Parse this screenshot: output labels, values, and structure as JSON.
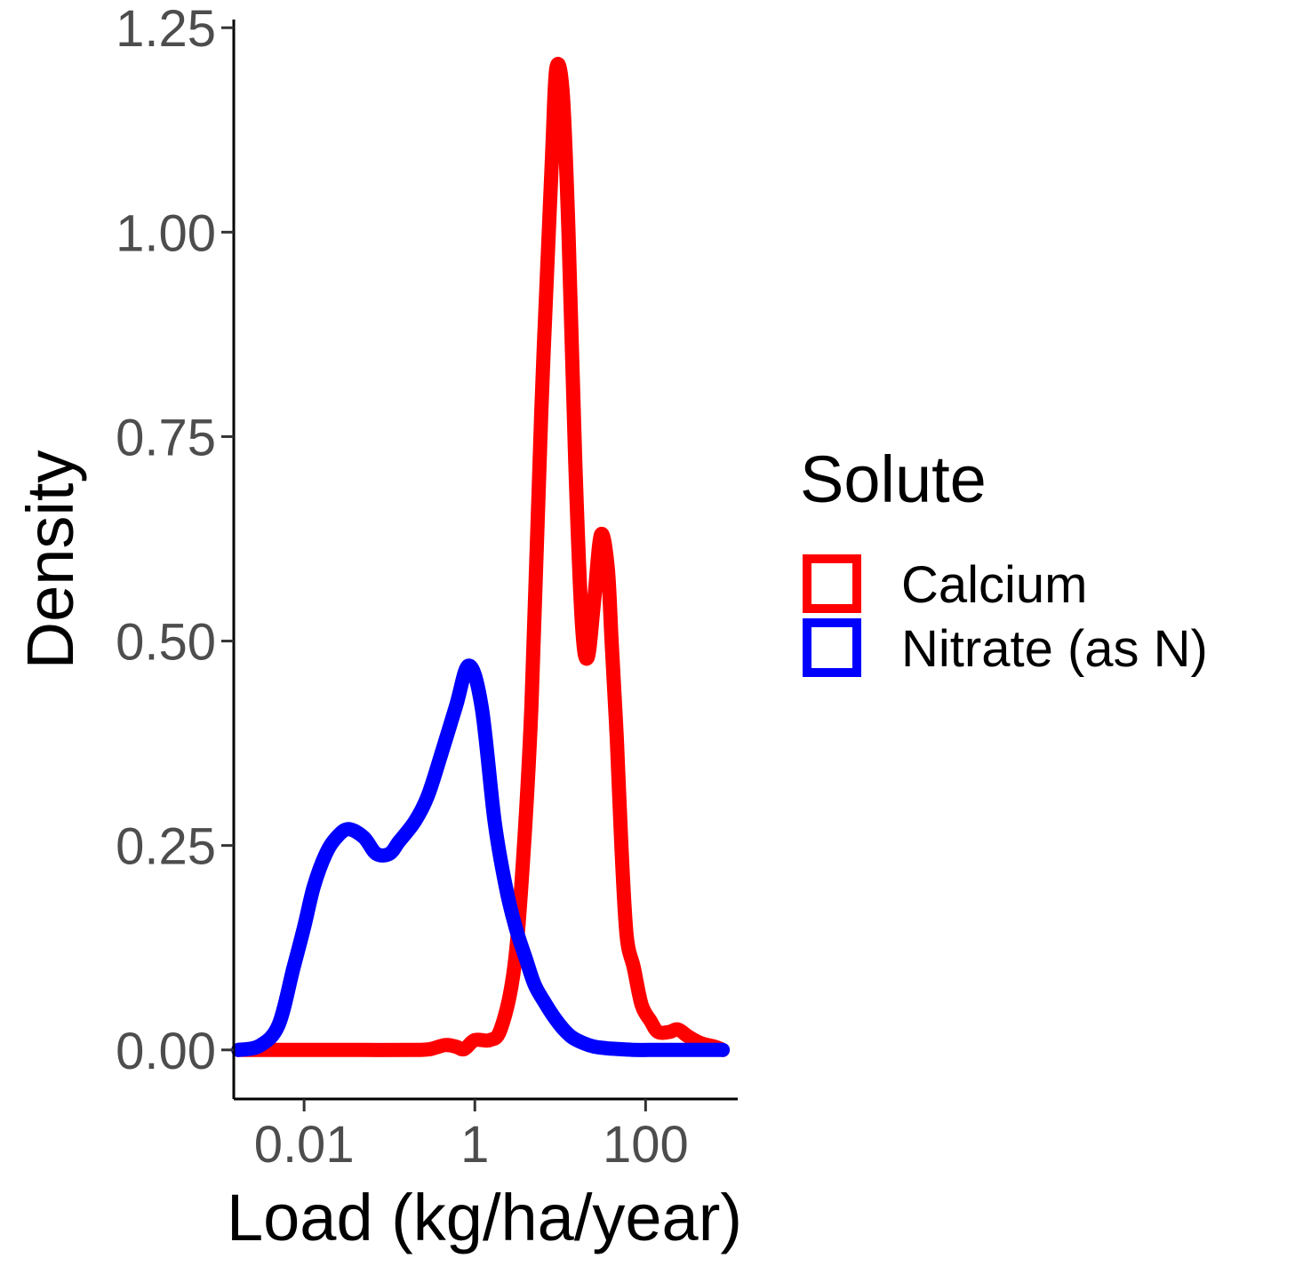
{
  "chart_data": {
    "type": "line",
    "xlabel": "Load (kg/ha/year)",
    "ylabel": "Density",
    "x_scale": "log10",
    "xlim": [
      0.0015,
      1200
    ],
    "ylim": [
      -0.06,
      1.26
    ],
    "x_ticks": [
      {
        "value": 0.01,
        "label": "0.01"
      },
      {
        "value": 1,
        "label": "1"
      },
      {
        "value": 100,
        "label": "100"
      }
    ],
    "y_ticks": [
      {
        "value": 0.0,
        "label": "0.00"
      },
      {
        "value": 0.25,
        "label": "0.25"
      },
      {
        "value": 0.5,
        "label": "0.50"
      },
      {
        "value": 0.75,
        "label": "0.75"
      },
      {
        "value": 1.0,
        "label": "1.00"
      },
      {
        "value": 1.25,
        "label": "1.25"
      }
    ],
    "legend": {
      "title": "Solute",
      "position": "right"
    },
    "series": [
      {
        "name": "Calcium",
        "color": "#ff0000",
        "x": [
          0.0017,
          0.01,
          0.05,
          0.2,
          0.3,
          0.45,
          0.6,
          0.75,
          1,
          1.5,
          2,
          2.8,
          3.5,
          4.6,
          6,
          8,
          9,
          10.7,
          12.5,
          15,
          18,
          21,
          25,
          30,
          36,
          40,
          46,
          52,
          60,
          73,
          90,
          115,
          140,
          190,
          240,
          320,
          450,
          640,
          800
        ],
        "y": [
          0.0,
          0.0,
          0.0,
          0.0,
          0.001,
          0.006,
          0.004,
          0.001,
          0.012,
          0.012,
          0.025,
          0.09,
          0.2,
          0.42,
          0.78,
          1.09,
          1.2,
          1.17,
          1.0,
          0.72,
          0.52,
          0.48,
          0.55,
          0.63,
          0.59,
          0.5,
          0.38,
          0.25,
          0.14,
          0.1,
          0.055,
          0.035,
          0.022,
          0.022,
          0.025,
          0.016,
          0.008,
          0.004,
          0.0
        ]
      },
      {
        "name": "Nitrate (as N)",
        "color": "#0000ff",
        "x": [
          0.0017,
          0.003,
          0.005,
          0.0075,
          0.01,
          0.013,
          0.018,
          0.024,
          0.033,
          0.05,
          0.07,
          0.1,
          0.13,
          0.2,
          0.28,
          0.4,
          0.6,
          0.85,
          1.2,
          1.7,
          2.3,
          3,
          4,
          5,
          6.4,
          8.5,
          11,
          14,
          19,
          25,
          35,
          50,
          75,
          110,
          200,
          400,
          800
        ],
        "y": [
          0.0,
          0.005,
          0.03,
          0.1,
          0.15,
          0.2,
          0.24,
          0.26,
          0.27,
          0.26,
          0.24,
          0.24,
          0.255,
          0.28,
          0.31,
          0.36,
          0.42,
          0.47,
          0.42,
          0.28,
          0.2,
          0.15,
          0.11,
          0.08,
          0.06,
          0.04,
          0.025,
          0.015,
          0.008,
          0.004,
          0.002,
          0.001,
          0.0,
          0.0,
          0.0,
          0.0,
          0.0
        ]
      }
    ]
  }
}
